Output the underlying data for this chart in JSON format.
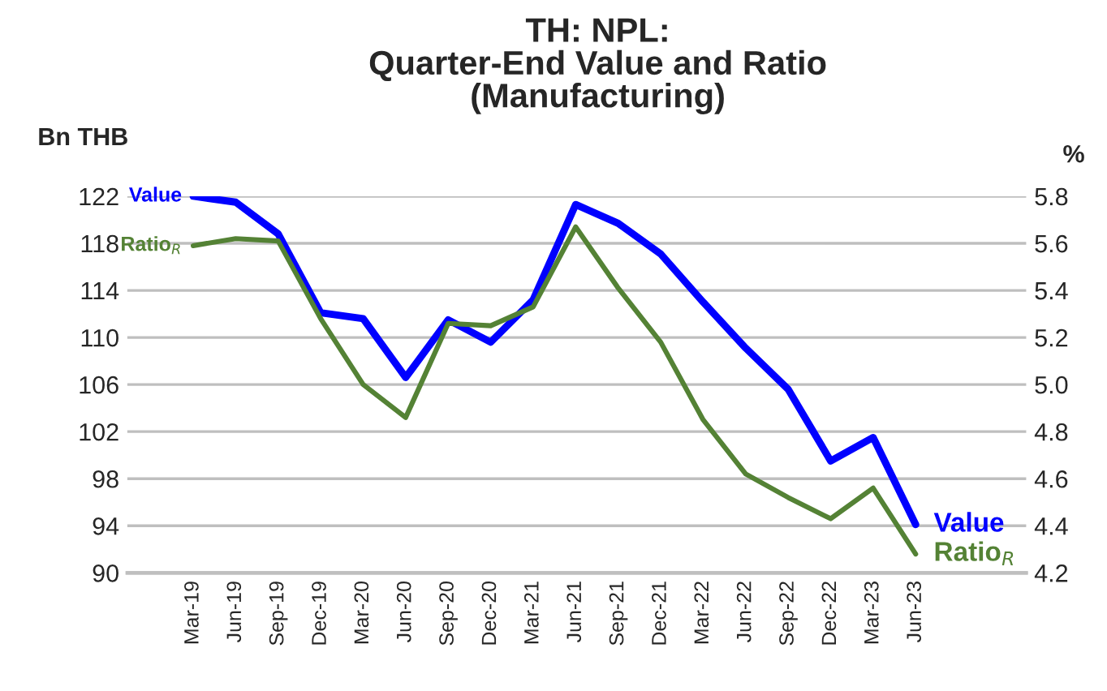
{
  "chart_data": {
    "type": "line",
    "title": "TH: NPL:\nQuarter-End Value and Ratio\n(Manufacturing)",
    "ylabel": "Bn THB",
    "y2label": "%",
    "categories": [
      "Mar-19",
      "Jun-19",
      "Sep-19",
      "Dec-19",
      "Mar-20",
      "Jun-20",
      "Sep-20",
      "Dec-20",
      "Mar-21",
      "Jun-21",
      "Sep-21",
      "Dec-21",
      "Mar-22",
      "Jun-22",
      "Sep-22",
      "Dec-22",
      "Mar-23",
      "Jun-23"
    ],
    "series": [
      {
        "name": "Value",
        "color": "#0000ff",
        "values": [
          122.0,
          121.5,
          118.8,
          112.1,
          111.6,
          106.6,
          111.5,
          109.6,
          113.2,
          121.3,
          119.7,
          117.1,
          113.0,
          109.1,
          105.6,
          99.5,
          101.5,
          94.1
        ]
      },
      {
        "name": "Ratio$_{R}$",
        "color": "#548235",
        "axis": "y2",
        "values": [
          5.59,
          5.62,
          5.61,
          5.28,
          5.0,
          4.86,
          5.26,
          5.25,
          5.33,
          5.67,
          5.41,
          5.18,
          4.85,
          4.62,
          4.52,
          4.43,
          4.56,
          4.28
        ]
      }
    ],
    "ylim": [
      90,
      122
    ],
    "yticks": [
      90,
      94,
      98,
      102,
      106,
      110,
      114,
      118,
      122
    ],
    "y2lim": [
      4.2,
      5.8
    ],
    "y2ticks": [
      {
        "value": 4.2,
        "label": "4.2"
      },
      {
        "value": 4.4,
        "label": "4.4"
      },
      {
        "value": 4.6,
        "label": "4.6"
      },
      {
        "value": 4.8,
        "label": "4.8"
      },
      {
        "value": 5.0,
        "label": "5.0"
      },
      {
        "value": 5.2,
        "label": "5.2"
      },
      {
        "value": 5.4,
        "label": "5.4"
      },
      {
        "value": 5.6,
        "label": "5.6"
      },
      {
        "value": 5.8,
        "label": "5.8"
      }
    ],
    "grid": "y",
    "legend": false,
    "marker": "none",
    "line_style": "solid"
  }
}
